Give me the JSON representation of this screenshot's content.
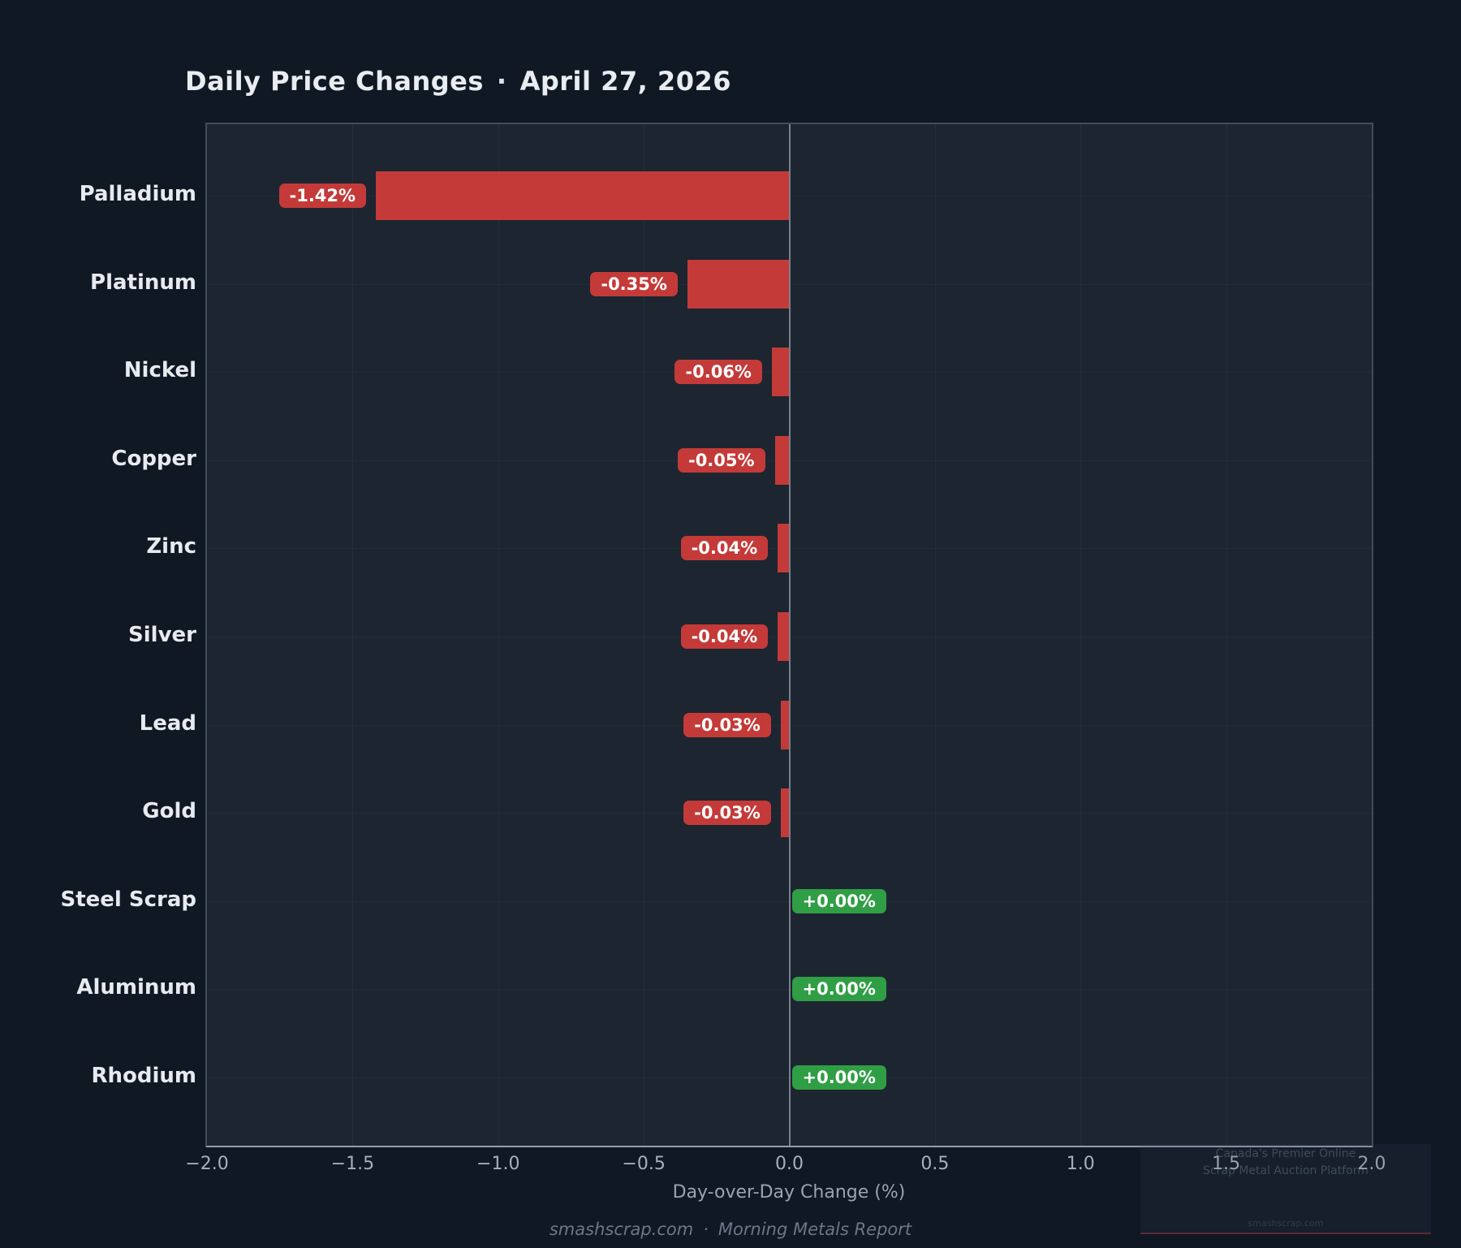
{
  "title": {
    "text": "Daily Price Changes",
    "separator": "·",
    "date": "April 27, 2026"
  },
  "chart_data": {
    "type": "bar",
    "orientation": "horizontal",
    "title": "Daily Price Changes · April 27, 2026",
    "categories": [
      "Palladium",
      "Platinum",
      "Nickel",
      "Copper",
      "Zinc",
      "Silver",
      "Lead",
      "Gold",
      "Steel Scrap",
      "Aluminum",
      "Rhodium"
    ],
    "values": [
      -1.42,
      -0.35,
      -0.06,
      -0.05,
      -0.04,
      -0.04,
      -0.03,
      -0.03,
      0.0,
      0.0,
      0.0
    ],
    "bar_labels": [
      "-1.42%",
      "-0.35%",
      "-0.06%",
      "-0.05%",
      "-0.04%",
      "-0.04%",
      "-0.03%",
      "-0.03%",
      "+0.00%",
      "+0.00%",
      "+0.00%"
    ],
    "xlabel": "Day-over-Day Change (%)",
    "xlim": [
      -2.0,
      2.0
    ],
    "xticks": {
      "values": [
        -2.0,
        -1.5,
        -1.0,
        -0.5,
        0.0,
        0.5,
        1.0,
        1.5,
        2.0
      ],
      "labels": [
        "−2.0",
        "−1.5",
        "−1.0",
        "−0.5",
        "0.0",
        "0.5",
        "1.0",
        "1.5",
        "2.0"
      ]
    },
    "grid": true,
    "legend": false,
    "colors": {
      "negative_bar": "#c43a38",
      "negative_badge": "#c43a38",
      "positive_badge": "#2f9e44",
      "badge_text": "#ffffff",
      "zero_line": "#76818f"
    }
  },
  "watermark": {
    "line1": "Canada's Premier Online",
    "line2": "Scrap Metal Auction Platform",
    "site": "smashscrap.com"
  },
  "footer": {
    "site": "smashscrap.com",
    "separator": "·",
    "report": "Morning Metals Report"
  }
}
